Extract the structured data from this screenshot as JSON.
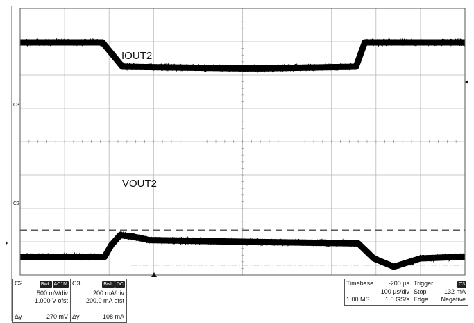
{
  "chart_data": {
    "type": "line",
    "title": "",
    "xlabel": "",
    "ylabel": "",
    "grid": true,
    "x_divisions": 10,
    "y_divisions": 8,
    "series": [
      {
        "name": "IOUT2",
        "channel": "C3",
        "x": [
          0,
          1.85,
          2.3,
          5.0,
          5.4,
          7.55,
          7.75,
          10
        ],
        "y": [
          2.98,
          2.98,
          2.25,
          2.2,
          2.2,
          2.25,
          2.98,
          2.98
        ]
      },
      {
        "name": "VOUT2",
        "channel": "C2",
        "x": [
          0,
          1.9,
          2.05,
          2.25,
          2.55,
          2.9,
          5.0,
          7.6,
          7.95,
          8.4,
          9.0,
          10
        ],
        "y": [
          -3.45,
          -3.45,
          -3.1,
          -2.8,
          -2.85,
          -2.95,
          -3.0,
          -3.05,
          -3.5,
          -3.75,
          -3.5,
          -3.45
        ]
      }
    ],
    "cursors": {
      "dashed_level": -2.65,
      "dashdot_level": -3.7,
      "dashdot_x_start": 2.5
    },
    "trigger_marker_x": 2.0
  },
  "labels": {
    "iout2": "IOUT2",
    "vout2": "VOUT2",
    "c3_marker": "C3",
    "c2_marker": "C2"
  },
  "info": {
    "c2": {
      "name": "C2",
      "tag1": "BwL",
      "tag2": "AC1M",
      "scale": "500 mV/div",
      "offset": "-1.000 V ofst",
      "dy_label": "Δy",
      "dy_value": "270 mV"
    },
    "c3": {
      "name": "C3",
      "tag1": "BwL",
      "tag2": "DC",
      "scale": "200 mA/div",
      "offset": "200.0 mA ofst",
      "dy_label": "Δy",
      "dy_value": "108 mA"
    },
    "timebase": {
      "label": "Timebase",
      "value": "-200 µs",
      "div": "100 µs/div",
      "ms": "1.00 MS",
      "rate": "1.0 GS/s"
    },
    "trigger": {
      "label": "Trigger",
      "tag": "C3",
      "stop": "Stop",
      "level": "132 mA",
      "edge": "Edge",
      "slope": "Negative"
    }
  },
  "colors": {
    "trace": "#000000",
    "grid": "#b8b8b8",
    "frame": "#555555"
  }
}
